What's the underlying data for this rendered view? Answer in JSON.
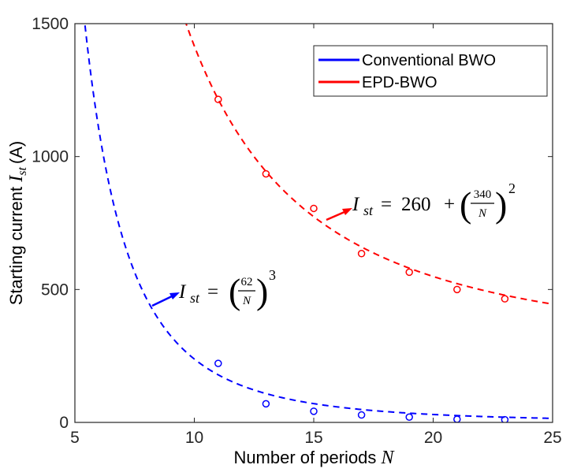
{
  "chart_data": {
    "type": "scatter",
    "xlabel": "Number of periods",
    "xlabel_var": "N",
    "ylabel": "Starting  current",
    "ylabel_var": "I",
    "ylabel_sub": "st",
    "ylabel_unit": "(A)",
    "xlim": [
      5,
      25
    ],
    "ylim": [
      0,
      1500
    ],
    "xticks": [
      5,
      10,
      15,
      20,
      25
    ],
    "yticks": [
      0,
      500,
      1000,
      1500
    ],
    "grid": false,
    "legend_position": "top-right",
    "legend": [
      "Conventional BWO",
      "EPD-BWO"
    ],
    "series": [
      {
        "name": "Conventional BWO",
        "color": "#0000ff",
        "x": [
          11,
          13,
          15,
          17,
          19,
          21,
          23
        ],
        "y": [
          222,
          70,
          42,
          28,
          20,
          12,
          10
        ],
        "fit": {
          "type": "power",
          "constant": 62,
          "exponent": 3
        }
      },
      {
        "name": "EPD-BWO",
        "color": "#ff0000",
        "x": [
          11,
          13,
          15,
          17,
          19,
          21,
          23
        ],
        "y": [
          1215,
          935,
          805,
          635,
          565,
          500,
          465
        ],
        "fit": {
          "type": "offset_power",
          "offset": 260,
          "constant": 340,
          "exponent": 2
        }
      }
    ],
    "annotations": [
      {
        "series": "Conventional BWO",
        "var": "I",
        "sub": "st",
        "eq": "=",
        "num": "62",
        "den": "N",
        "exp": "3"
      },
      {
        "series": "EPD-BWO",
        "var": "I",
        "sub": "st",
        "eq": "=",
        "offset": "260",
        "plus": "+",
        "num": "340",
        "den": "N",
        "exp": "2"
      }
    ]
  }
}
